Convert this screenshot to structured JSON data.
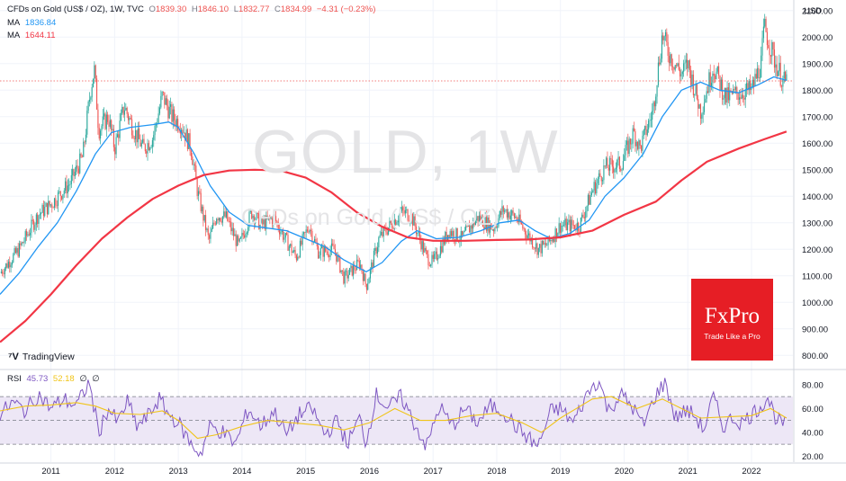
{
  "header": {
    "symbol": "CFDs on Gold (US$ / OZ), 1W, TVC",
    "open_label": "O",
    "open": "1839.30",
    "high_label": "H",
    "high": "1846.10",
    "low_label": "L",
    "low": "1832.77",
    "close_label": "C",
    "close": "1834.99",
    "change": "−4.31 (−0.23%)"
  },
  "ma1": {
    "label": "MA",
    "value": "1836.84",
    "color": "#2196f3"
  },
  "ma2": {
    "label": "MA",
    "value": "1644.11",
    "color": "#f23645"
  },
  "rsi": {
    "label": "RSI",
    "value": "45.73",
    "ma_value": "52.18",
    "extra1": "∅",
    "extra2": "∅",
    "color": "#7e57c2",
    "ma_color": "#f0c419"
  },
  "watermark": {
    "title": "GOLD, 1W",
    "subtitle": "CFDs on Gold (US$ / OZ)"
  },
  "branding": {
    "tradingview": "TradingView",
    "fxpro_logo": "FxPro",
    "fxpro_tagline": "Trade Like a Pro"
  },
  "currency": "USD",
  "colors": {
    "up": "#26a69a",
    "down": "#ef5350",
    "grid": "#f0f3fa",
    "rsi_band": "#ede7f6"
  },
  "chart_data": [
    {
      "type": "candlestick",
      "title": "CFDs on Gold (US$ / OZ), 1W, TVC",
      "ylabel": "USD",
      "ylim": [
        750,
        2140
      ],
      "yticks": [
        800,
        900,
        1000,
        1100,
        1200,
        1300,
        1400,
        1500,
        1600,
        1700,
        1800,
        1900,
        2000,
        2100
      ],
      "xticks": [
        "2011",
        "2012",
        "2013",
        "2014",
        "2015",
        "2016",
        "2017",
        "2018",
        "2019",
        "2020",
        "2021",
        "2022"
      ],
      "xlim": [
        2010.2,
        2022.65
      ],
      "close_path": [
        [
          2010.2,
          1110
        ],
        [
          2010.5,
          1200
        ],
        [
          2010.8,
          1330
        ],
        [
          2011.0,
          1370
        ],
        [
          2011.3,
          1450
        ],
        [
          2011.5,
          1550
        ],
        [
          2011.62,
          1800
        ],
        [
          2011.68,
          1880
        ],
        [
          2011.75,
          1650
        ],
        [
          2011.9,
          1700
        ],
        [
          2012.0,
          1580
        ],
        [
          2012.15,
          1740
        ],
        [
          2012.3,
          1650
        ],
        [
          2012.45,
          1580
        ],
        [
          2012.6,
          1620
        ],
        [
          2012.75,
          1780
        ],
        [
          2012.9,
          1700
        ],
        [
          2013.05,
          1670
        ],
        [
          2013.2,
          1580
        ],
        [
          2013.3,
          1420
        ],
        [
          2013.48,
          1230
        ],
        [
          2013.6,
          1330
        ],
        [
          2013.75,
          1320
        ],
        [
          2013.95,
          1210
        ],
        [
          2014.15,
          1340
        ],
        [
          2014.3,
          1290
        ],
        [
          2014.5,
          1320
        ],
        [
          2014.7,
          1230
        ],
        [
          2014.85,
          1170
        ],
        [
          2015.05,
          1290
        ],
        [
          2015.2,
          1190
        ],
        [
          2015.45,
          1200
        ],
        [
          2015.6,
          1090
        ],
        [
          2015.85,
          1150
        ],
        [
          2015.95,
          1060
        ],
        [
          2016.15,
          1240
        ],
        [
          2016.5,
          1340
        ],
        [
          2016.65,
          1330
        ],
        [
          2016.9,
          1170
        ],
        [
          2017.0,
          1150
        ],
        [
          2017.25,
          1270
        ],
        [
          2017.45,
          1240
        ],
        [
          2017.7,
          1320
        ],
        [
          2017.95,
          1280
        ],
        [
          2018.1,
          1350
        ],
        [
          2018.3,
          1320
        ],
        [
          2018.5,
          1250
        ],
        [
          2018.65,
          1200
        ],
        [
          2018.8,
          1220
        ],
        [
          2019.0,
          1290
        ],
        [
          2019.3,
          1290
        ],
        [
          2019.5,
          1420
        ],
        [
          2019.7,
          1510
        ],
        [
          2019.95,
          1520
        ],
        [
          2020.15,
          1640
        ],
        [
          2020.25,
          1580
        ],
        [
          2020.45,
          1720
        ],
        [
          2020.6,
          2010
        ],
        [
          2020.7,
          1940
        ],
        [
          2020.9,
          1860
        ],
        [
          2021.0,
          1900
        ],
        [
          2021.2,
          1720
        ],
        [
          2021.4,
          1890
        ],
        [
          2021.6,
          1770
        ],
        [
          2021.8,
          1790
        ],
        [
          2022.0,
          1800
        ],
        [
          2022.15,
          1900
        ],
        [
          2022.2,
          2040
        ],
        [
          2022.35,
          1920
        ],
        [
          2022.5,
          1830
        ],
        [
          2022.55,
          1835
        ]
      ],
      "series": [
        {
          "name": "MA",
          "value": 1836.84,
          "color": "#2196f3",
          "points": [
            [
              2010.2,
              1030
            ],
            [
              2010.5,
              1110
            ],
            [
              2010.8,
              1210
            ],
            [
              2011.1,
              1300
            ],
            [
              2011.4,
              1420
            ],
            [
              2011.7,
              1560
            ],
            [
              2011.95,
              1640
            ],
            [
              2012.25,
              1660
            ],
            [
              2012.6,
              1670
            ],
            [
              2012.85,
              1680
            ],
            [
              2013.0,
              1660
            ],
            [
              2013.25,
              1560
            ],
            [
              2013.5,
              1440
            ],
            [
              2013.8,
              1340
            ],
            [
              2014.1,
              1290
            ],
            [
              2014.4,
              1280
            ],
            [
              2014.7,
              1270
            ],
            [
              2015.0,
              1240
            ],
            [
              2015.3,
              1210
            ],
            [
              2015.6,
              1160
            ],
            [
              2015.95,
              1115
            ],
            [
              2016.2,
              1150
            ],
            [
              2016.5,
              1230
            ],
            [
              2016.75,
              1270
            ],
            [
              2017.05,
              1240
            ],
            [
              2017.4,
              1245
            ],
            [
              2017.75,
              1270
            ],
            [
              2018.05,
              1300
            ],
            [
              2018.35,
              1310
            ],
            [
              2018.6,
              1270
            ],
            [
              2018.85,
              1240
            ],
            [
              2019.15,
              1260
            ],
            [
              2019.45,
              1310
            ],
            [
              2019.7,
              1400
            ],
            [
              2020.0,
              1470
            ],
            [
              2020.3,
              1560
            ],
            [
              2020.6,
              1700
            ],
            [
              2020.9,
              1800
            ],
            [
              2021.2,
              1830
            ],
            [
              2021.5,
              1800
            ],
            [
              2021.8,
              1790
            ],
            [
              2022.1,
              1820
            ],
            [
              2022.35,
              1850
            ],
            [
              2022.55,
              1837
            ]
          ]
        },
        {
          "name": "MA",
          "value": 1644.11,
          "color": "#f23645",
          "points": [
            [
              2010.2,
              850
            ],
            [
              2010.6,
              930
            ],
            [
              2011.0,
              1030
            ],
            [
              2011.4,
              1140
            ],
            [
              2011.8,
              1240
            ],
            [
              2012.2,
              1320
            ],
            [
              2012.6,
              1390
            ],
            [
              2013.0,
              1440
            ],
            [
              2013.4,
              1480
            ],
            [
              2013.8,
              1497
            ],
            [
              2014.2,
              1500
            ],
            [
              2014.6,
              1497
            ],
            [
              2015.0,
              1470
            ],
            [
              2015.4,
              1415
            ],
            [
              2015.8,
              1340
            ],
            [
              2016.2,
              1285
            ],
            [
              2016.6,
              1245
            ],
            [
              2017.0,
              1232
            ],
            [
              2017.5,
              1232
            ],
            [
              2018.0,
              1235
            ],
            [
              2018.5,
              1237
            ],
            [
              2019.0,
              1245
            ],
            [
              2019.5,
              1270
            ],
            [
              2020.0,
              1330
            ],
            [
              2020.5,
              1380
            ],
            [
              2020.9,
              1460
            ],
            [
              2021.3,
              1530
            ],
            [
              2021.8,
              1580
            ],
            [
              2022.2,
              1615
            ],
            [
              2022.55,
              1644
            ]
          ]
        }
      ]
    },
    {
      "type": "line",
      "title": "RSI",
      "ylim": [
        15,
        92
      ],
      "yticks": [
        20,
        40,
        60,
        80
      ],
      "bands": [
        30,
        50,
        70
      ],
      "series": [
        {
          "name": "RSI",
          "value": 45.73,
          "color": "#7e57c2",
          "points": [
            [
              2010.2,
              55
            ],
            [
              2010.4,
              65
            ],
            [
              2010.6,
              58
            ],
            [
              2010.8,
              72
            ],
            [
              2011.0,
              60
            ],
            [
              2011.2,
              68
            ],
            [
              2011.4,
              62
            ],
            [
              2011.6,
              82
            ],
            [
              2011.75,
              40
            ],
            [
              2011.9,
              60
            ],
            [
              2012.05,
              48
            ],
            [
              2012.2,
              66
            ],
            [
              2012.35,
              45
            ],
            [
              2012.5,
              52
            ],
            [
              2012.7,
              68
            ],
            [
              2012.85,
              55
            ],
            [
              2013.0,
              48
            ],
            [
              2013.2,
              30
            ],
            [
              2013.35,
              22
            ],
            [
              2013.5,
              45
            ],
            [
              2013.7,
              40
            ],
            [
              2013.9,
              30
            ],
            [
              2014.1,
              60
            ],
            [
              2014.3,
              45
            ],
            [
              2014.5,
              58
            ],
            [
              2014.7,
              38
            ],
            [
              2014.9,
              55
            ],
            [
              2015.1,
              60
            ],
            [
              2015.3,
              38
            ],
            [
              2015.5,
              50
            ],
            [
              2015.65,
              30
            ],
            [
              2015.85,
              52
            ],
            [
              2015.95,
              30
            ],
            [
              2016.1,
              72
            ],
            [
              2016.3,
              60
            ],
            [
              2016.5,
              70
            ],
            [
              2016.7,
              48
            ],
            [
              2016.9,
              28
            ],
            [
              2017.1,
              62
            ],
            [
              2017.3,
              45
            ],
            [
              2017.5,
              60
            ],
            [
              2017.7,
              48
            ],
            [
              2017.9,
              62
            ],
            [
              2018.1,
              58
            ],
            [
              2018.3,
              45
            ],
            [
              2018.5,
              35
            ],
            [
              2018.65,
              28
            ],
            [
              2018.85,
              58
            ],
            [
              2019.0,
              60
            ],
            [
              2019.2,
              48
            ],
            [
              2019.45,
              75
            ],
            [
              2019.6,
              84
            ],
            [
              2019.75,
              58
            ],
            [
              2019.95,
              72
            ],
            [
              2020.15,
              60
            ],
            [
              2020.3,
              45
            ],
            [
              2020.5,
              72
            ],
            [
              2020.65,
              82
            ],
            [
              2020.8,
              52
            ],
            [
              2020.95,
              58
            ],
            [
              2021.1,
              55
            ],
            [
              2021.25,
              42
            ],
            [
              2021.4,
              70
            ],
            [
              2021.55,
              45
            ],
            [
              2021.7,
              52
            ],
            [
              2021.85,
              48
            ],
            [
              2022.0,
              55
            ],
            [
              2022.15,
              62
            ],
            [
              2022.25,
              70
            ],
            [
              2022.4,
              50
            ],
            [
              2022.55,
              45.73
            ]
          ]
        },
        {
          "name": "MA",
          "value": 52.18,
          "color": "#f0c419",
          "points": [
            [
              2010.2,
              58
            ],
            [
              2010.6,
              62
            ],
            [
              2011.0,
              63
            ],
            [
              2011.4,
              65
            ],
            [
              2011.7,
              62
            ],
            [
              2012.0,
              56
            ],
            [
              2012.4,
              55
            ],
            [
              2012.75,
              58
            ],
            [
              2013.0,
              50
            ],
            [
              2013.3,
              35
            ],
            [
              2013.6,
              38
            ],
            [
              2014.0,
              45
            ],
            [
              2014.4,
              50
            ],
            [
              2014.8,
              48
            ],
            [
              2015.2,
              46
            ],
            [
              2015.6,
              42
            ],
            [
              2016.0,
              48
            ],
            [
              2016.4,
              60
            ],
            [
              2016.8,
              50
            ],
            [
              2017.2,
              50
            ],
            [
              2017.6,
              54
            ],
            [
              2018.0,
              56
            ],
            [
              2018.4,
              48
            ],
            [
              2018.7,
              40
            ],
            [
              2019.0,
              52
            ],
            [
              2019.5,
              68
            ],
            [
              2019.8,
              70
            ],
            [
              2020.2,
              60
            ],
            [
              2020.6,
              68
            ],
            [
              2020.9,
              60
            ],
            [
              2021.2,
              52
            ],
            [
              2021.6,
              53
            ],
            [
              2022.0,
              54
            ],
            [
              2022.3,
              60
            ],
            [
              2022.55,
              52
            ]
          ]
        }
      ]
    }
  ]
}
